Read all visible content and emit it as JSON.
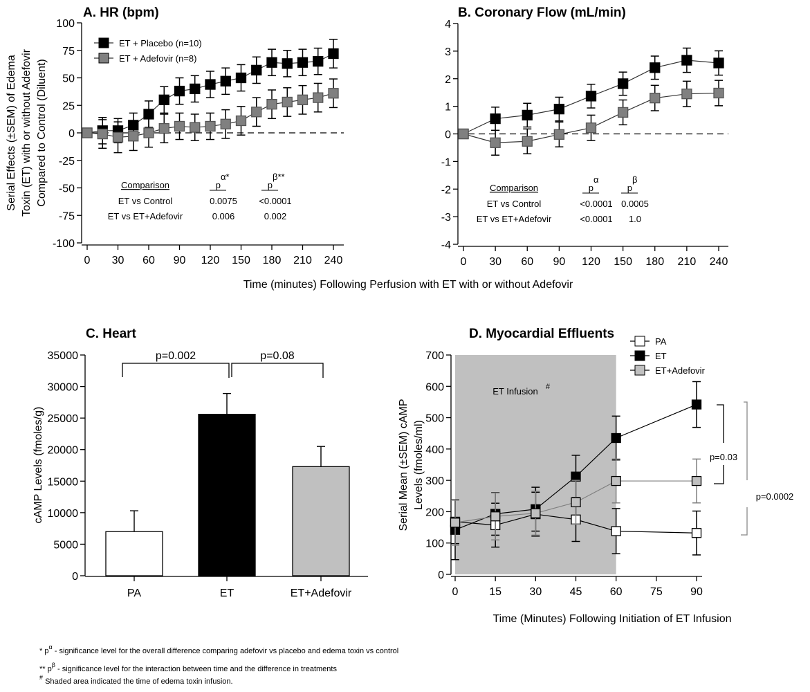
{
  "shared_xlabel": "Time (minutes) Following Perfusion with ET with or without Adefovir",
  "footnotes": [
    {
      "prefix": "* p",
      "sup": "α",
      "text": " - significance level for the overall difference comparing adefovir vs placebo and edema toxin vs control"
    },
    {
      "prefix": "** p",
      "sup": "β",
      "text": " - significance level for the interaction between time and the difference in treatments"
    },
    {
      "prefix": "",
      "sup": "#",
      "text": " Shaded area indicated the time of edema toxin infusion."
    }
  ],
  "colors": {
    "black": "#000000",
    "dark_gray": "#808080",
    "light_gray": "#c0c0c0",
    "shade": "#c0c0c0"
  },
  "chart_data": [
    {
      "type": "line",
      "title": "A. HR (bpm)",
      "ylabel_lines": [
        "Serial Effects (±SEM) of Edema",
        "Toxin (ET) with or without Adefovir",
        "Compared to Control (Diluent)"
      ],
      "ylim": [
        -100,
        100
      ],
      "yticks": [
        "-100",
        "-75",
        "-50",
        "-25",
        "0",
        "25",
        "50",
        "75",
        "100"
      ],
      "xlim": [
        0,
        240
      ],
      "xticks": [
        "0",
        "30",
        "60",
        "90",
        "120",
        "150",
        "180",
        "210",
        "240"
      ],
      "x": [
        0,
        15,
        30,
        45,
        60,
        75,
        90,
        105,
        120,
        135,
        150,
        165,
        180,
        195,
        210,
        225,
        240
      ],
      "reference_line": 0,
      "legend_position": "top-left",
      "series": [
        {
          "name": "ET + Placebo (n=10)",
          "color": "#000000",
          "values": [
            0,
            2,
            2,
            7,
            17,
            30,
            38,
            40,
            44,
            47,
            50,
            57,
            64,
            63,
            64,
            65,
            72
          ],
          "sem": [
            0,
            12,
            11,
            11,
            12,
            12,
            12,
            12,
            12,
            12,
            12,
            12,
            12,
            12,
            12,
            12,
            13
          ]
        },
        {
          "name": "ET + Adefovir (n=8)",
          "color": "#808080",
          "values": [
            0,
            -1,
            -4,
            -3,
            0,
            4,
            6,
            5,
            6,
            8,
            11,
            19,
            26,
            28,
            30,
            32,
            36
          ],
          "sem": [
            0,
            13,
            14,
            13,
            13,
            13,
            12,
            12,
            12,
            13,
            13,
            13,
            13,
            13,
            13,
            13,
            13
          ]
        }
      ],
      "stats_table": {
        "header": [
          "Comparison",
          "p",
          "α*",
          "p",
          "β**"
        ],
        "rows": [
          [
            "ET vs Control",
            "0.0075",
            "<0.0001"
          ],
          [
            "ET vs ET+Adefovir",
            "0.006",
            "0.002"
          ]
        ]
      }
    },
    {
      "type": "line",
      "title": "B. Coronary Flow (mL/min)",
      "ylim": [
        -4,
        4
      ],
      "yticks": [
        "-4",
        "-3",
        "-2",
        "-1",
        "0",
        "1",
        "2",
        "3",
        "4"
      ],
      "xlim": [
        0,
        240
      ],
      "xticks": [
        "0",
        "30",
        "60",
        "90",
        "120",
        "150",
        "180",
        "210",
        "240"
      ],
      "x": [
        0,
        30,
        60,
        90,
        120,
        150,
        180,
        210,
        240
      ],
      "reference_line": 0,
      "series": [
        {
          "name": "ET + Placebo (n=10)",
          "color": "#000000",
          "values": [
            0,
            0.55,
            0.68,
            0.9,
            1.37,
            1.82,
            2.4,
            2.67,
            2.57
          ],
          "sem": [
            0,
            0.42,
            0.43,
            0.43,
            0.43,
            0.42,
            0.42,
            0.44,
            0.44
          ]
        },
        {
          "name": "ET + Adefovir (n=8)",
          "color": "#808080",
          "values": [
            0,
            -0.32,
            -0.27,
            -0.02,
            0.22,
            0.78,
            1.3,
            1.45,
            1.48
          ],
          "sem": [
            0,
            0.45,
            0.45,
            0.45,
            0.46,
            0.45,
            0.46,
            0.46,
            0.46
          ]
        }
      ],
      "stats_table": {
        "header": [
          "Comparison",
          "p",
          "α",
          "p",
          "β"
        ],
        "rows": [
          [
            "ET vs Control",
            "<0.0001",
            "0.0005"
          ],
          [
            "ET vs ET+Adefovir",
            "<0.0001",
            "1.0"
          ]
        ]
      }
    },
    {
      "type": "bar",
      "title": "C. Heart",
      "ylabel": "cAMP Levels (fmoles/g)",
      "ylim": [
        0,
        35000
      ],
      "yticks": [
        "0",
        "5000",
        "10000",
        "15000",
        "20000",
        "25000",
        "30000",
        "35000"
      ],
      "categories": [
        "PA",
        "ET",
        "ET+Adefovir"
      ],
      "values": [
        7000,
        25600,
        17300
      ],
      "sem": [
        3300,
        3300,
        3200
      ],
      "bar_colors": [
        "#ffffff",
        "#000000",
        "#c0c0c0"
      ],
      "comparisons": [
        {
          "between": [
            "PA",
            "ET"
          ],
          "label": "p=0.002"
        },
        {
          "between": [
            "ET",
            "ET+Adefovir"
          ],
          "label": "p=0.08"
        }
      ]
    },
    {
      "type": "line",
      "title": "D. Myocardial  Effluents",
      "ylabel_lines": [
        "Serial Mean (±SEM) cAMP",
        "Levels (fmoles/ml)"
      ],
      "xlabel": "Time (Minutes) Following Initiation of ET Infusion",
      "ylim": [
        0,
        700
      ],
      "yticks": [
        "0",
        "100",
        "200",
        "300",
        "400",
        "500",
        "600",
        "700"
      ],
      "xlim": [
        0,
        90
      ],
      "xticks": [
        "0",
        "15",
        "30",
        "45",
        "60",
        "75",
        "90"
      ],
      "x": [
        0,
        15,
        30,
        45,
        60,
        90
      ],
      "shaded_region": {
        "x": [
          0,
          60
        ],
        "label": "ET Infusion",
        "label_sup": "#"
      },
      "legend_position": "top-right",
      "series": [
        {
          "name": "PA",
          "color": "#ffffff",
          "line": "#000000",
          "values": [
            168,
            157,
            192,
            175,
            138,
            132
          ],
          "sem": [
            70,
            70,
            70,
            70,
            72,
            70
          ]
        },
        {
          "name": "ET",
          "color": "#000000",
          "line": "#000000",
          "values": [
            142,
            193,
            208,
            312,
            435,
            542
          ],
          "sem": [
            95,
            68,
            70,
            68,
            70,
            73
          ]
        },
        {
          "name": "ET+Adefovir",
          "color": "#c0c0c0",
          "line": "#808080",
          "values": [
            165,
            185,
            195,
            230,
            298,
            298
          ],
          "sem": [
            72,
            75,
            70,
            70,
            70,
            70
          ]
        }
      ],
      "comparisons": [
        {
          "between": [
            "ET",
            "ET+Adefovir"
          ],
          "at_x": 90,
          "label": "p=0.03"
        },
        {
          "between": [
            "ET",
            "PA"
          ],
          "at_x": 90,
          "label": "p=0.0002"
        }
      ]
    }
  ]
}
